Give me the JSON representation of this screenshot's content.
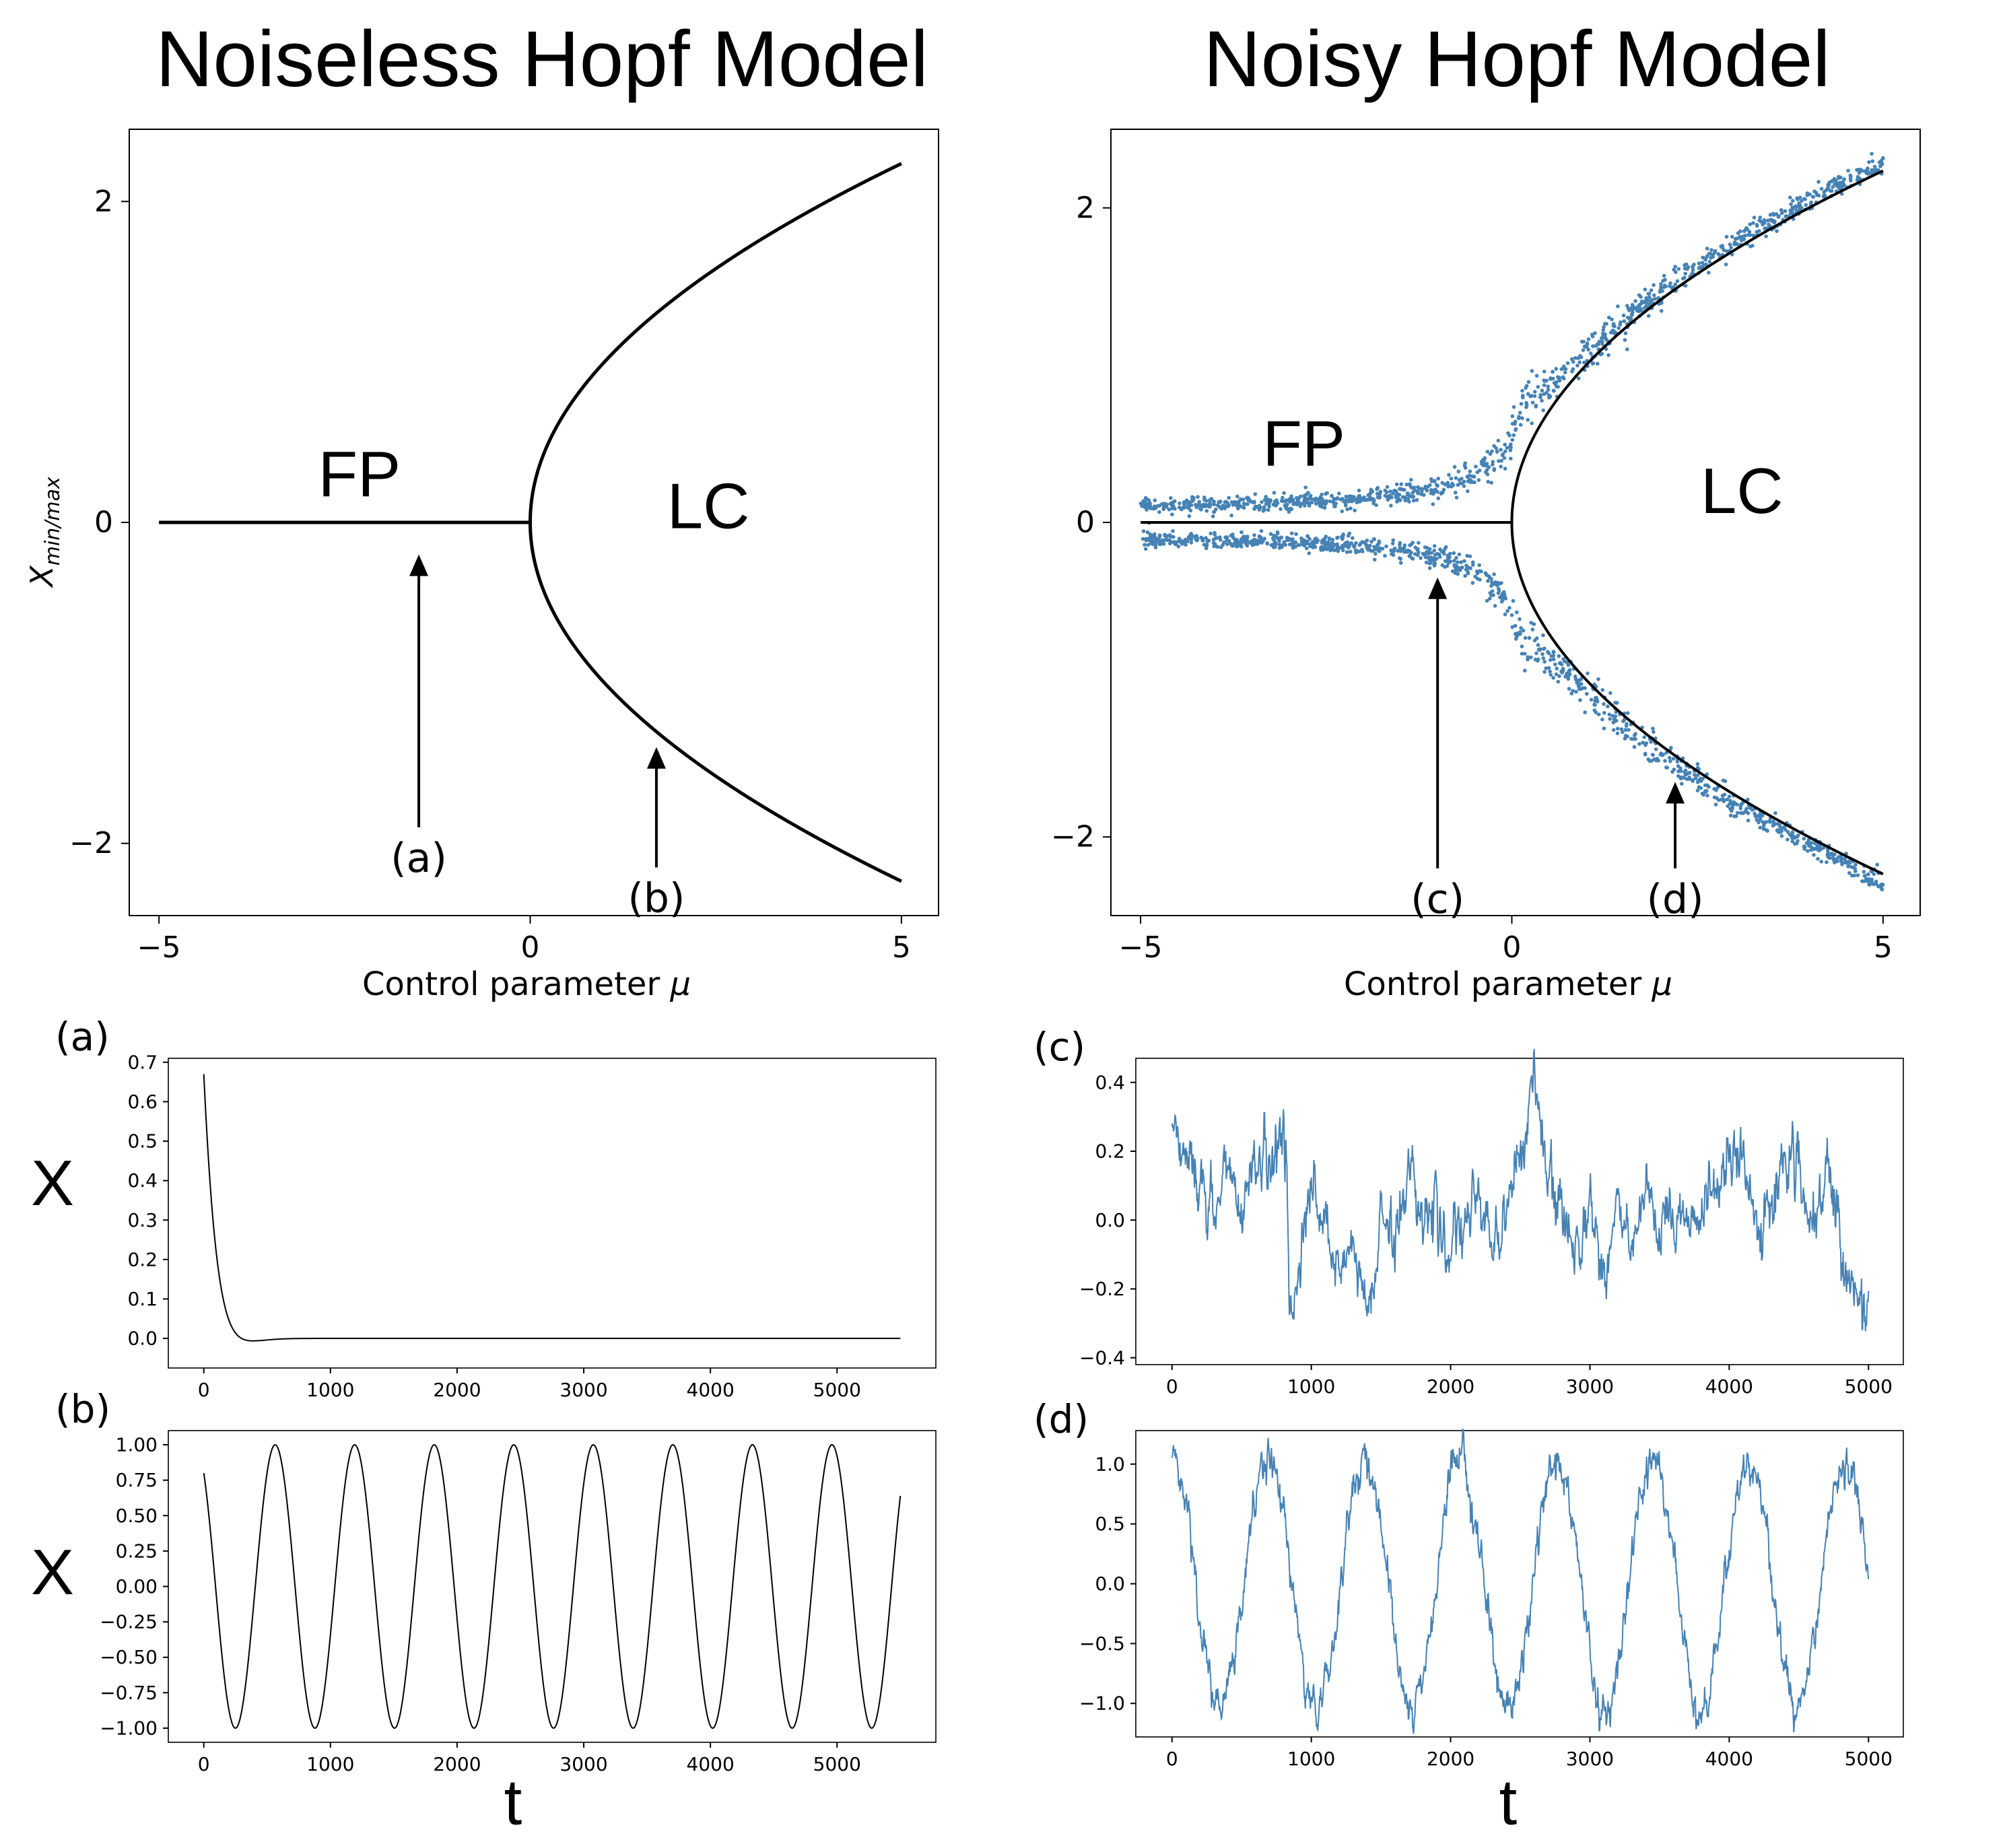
{
  "titles": {
    "left": "Noiseless Hopf Model",
    "right": "Noisy Hopf Model"
  },
  "colors": {
    "line": "#000000",
    "noisy": "#4682b4",
    "frame": "#000000"
  },
  "chart_data": [
    {
      "id": "noiseless-bifurcation",
      "type": "line",
      "xlabel": "Control parameter μ",
      "ylabel": "X_min/max",
      "xlim": [
        -5.4,
        5.5
      ],
      "ylim": [
        -2.45,
        2.45
      ],
      "xticks": [
        -5,
        0,
        5
      ],
      "xtick_labels": [
        "−5",
        "0",
        "5"
      ],
      "yticks": [
        -2,
        0,
        2
      ],
      "ytick_labels": [
        "−2",
        "0",
        "2"
      ],
      "region_labels": [
        {
          "text": "FP",
          "x": -2.3,
          "y": 0.3
        },
        {
          "text": "LC",
          "x": 2.4,
          "y": 0.1
        }
      ],
      "arrows": [
        {
          "label": "(a)",
          "x": -1.5,
          "y_from": -1.9,
          "y_to": -0.2
        },
        {
          "label": "(b)",
          "x": 1.7,
          "y_from": -2.15,
          "y_to": -1.4
        }
      ],
      "curves": {
        "fixed_point": {
          "x_from": -5,
          "x_to": 0,
          "y": 0
        },
        "limit_cycle": "±sqrt(μ), μ from 0 to 5"
      }
    },
    {
      "id": "noisy-bifurcation",
      "type": "scatter",
      "xlabel": "Control parameter μ",
      "xlim": [
        -5.4,
        5.5
      ],
      "ylim": [
        -2.5,
        2.5
      ],
      "xticks": [
        -5,
        0,
        5
      ],
      "xtick_labels": [
        "−5",
        "0",
        "5"
      ],
      "yticks": [
        -2,
        0,
        2
      ],
      "ytick_labels": [
        "−2",
        "0",
        "2"
      ],
      "region_labels": [
        {
          "text": "FP",
          "x": -2.8,
          "y": 0.5
        },
        {
          "text": "LC",
          "x": 3.1,
          "y": 0.2
        }
      ],
      "arrows": [
        {
          "label": "(c)",
          "x": -1.0,
          "y_from": -2.2,
          "y_to": -0.35
        },
        {
          "label": "(d)",
          "x": 2.2,
          "y_from": -2.2,
          "y_to": -1.65
        }
      ],
      "series": [
        {
          "name": "",
          "type": "line",
          "values": "±sqrt(μ) for μ ≥ 0, 0 for μ < 0"
        },
        {
          "name": "",
          "type": "scatter",
          "envelope_below_zero": [
            [
              -5,
              0.1
            ],
            [
              -3,
              0.12
            ],
            [
              -2,
              0.15
            ],
            [
              -1,
              0.22
            ],
            [
              -0.5,
              0.3
            ],
            [
              0,
              0.5
            ]
          ],
          "envelope_above_zero": "≈ sqrt(μ)+0.05"
        }
      ]
    },
    {
      "id": "timeseries-a",
      "panel_label": "(a)",
      "type": "line",
      "xlim": [
        -280,
        5780
      ],
      "ylim": [
        -0.075,
        0.71
      ],
      "xticks": [
        0,
        1000,
        2000,
        3000,
        4000,
        5000
      ],
      "yticks": [
        0.0,
        0.1,
        0.2,
        0.3,
        0.4,
        0.5,
        0.6,
        0.7
      ],
      "ytick_labels": [
        "0.0",
        "0.1",
        "0.2",
        "0.3",
        "0.4",
        "0.5",
        "0.6",
        "0.7"
      ],
      "ylabel": "X",
      "x_end": 5500,
      "x": [
        0,
        50,
        100,
        150,
        200,
        250,
        300,
        350,
        400,
        500,
        600,
        1000,
        5500
      ],
      "y": [
        0.67,
        0.35,
        0.12,
        -0.02,
        -0.055,
        -0.045,
        -0.025,
        -0.008,
        0.0,
        0.003,
        0.0,
        0.0,
        0.0
      ]
    },
    {
      "id": "timeseries-b",
      "panel_label": "(b)",
      "type": "line",
      "xlim": [
        -280,
        5780
      ],
      "ylim": [
        -1.1,
        1.1
      ],
      "xticks": [
        0,
        1000,
        2000,
        3000,
        4000,
        5000
      ],
      "yticks": [
        -1.0,
        -0.75,
        -0.5,
        -0.25,
        0.0,
        0.25,
        0.5,
        0.75,
        1.0
      ],
      "ytick_labels": [
        "−1.00",
        "−0.75",
        "−0.50",
        "−0.25",
        "0.00",
        "0.25",
        "0.50",
        "0.75",
        "1.00"
      ],
      "xlabel": "t",
      "ylabel": "X",
      "x_end": 5500,
      "period": 628,
      "amplitude": 1.0,
      "start_value": 0.8
    },
    {
      "id": "timeseries-c",
      "panel_label": "(c)",
      "type": "line",
      "xlim": [
        -260,
        5250
      ],
      "ylim": [
        -0.42,
        0.47
      ],
      "xticks": [
        0,
        1000,
        2000,
        3000,
        4000,
        5000
      ],
      "yticks": [
        -0.4,
        -0.2,
        0.0,
        0.2,
        0.4
      ],
      "ytick_labels": [
        "−0.4",
        "−0.2",
        "0.0",
        "0.2",
        "0.4"
      ],
      "x_end": 5000,
      "anchors_x": [
        0,
        100,
        200,
        300,
        400,
        500,
        600,
        700,
        800,
        850,
        900,
        1000,
        1100,
        1200,
        1300,
        1400,
        1500,
        1600,
        1700,
        1800,
        1900,
        2000,
        2100,
        2200,
        2300,
        2400,
        2500,
        2600,
        2700,
        2800,
        2900,
        3000,
        3100,
        3200,
        3300,
        3400,
        3500,
        3600,
        3700,
        3800,
        3900,
        4000,
        4100,
        4200,
        4300,
        4400,
        4500,
        4600,
        4700,
        4800,
        4900,
        5000
      ],
      "anchors_y": [
        0.3,
        0.2,
        0.1,
        0.0,
        0.15,
        0.05,
        0.2,
        0.15,
        0.3,
        -0.25,
        -0.2,
        0.1,
        -0.05,
        -0.2,
        -0.05,
        -0.3,
        0.0,
        -0.05,
        0.15,
        0.05,
        0.0,
        -0.1,
        -0.05,
        0.1,
        -0.1,
        0.05,
        0.2,
        0.4,
        0.1,
        0.0,
        -0.05,
        0.05,
        -0.15,
        0.05,
        -0.1,
        0.05,
        -0.05,
        0.0,
        0.05,
        0.0,
        0.1,
        0.2,
        0.15,
        -0.05,
        0.05,
        0.2,
        0.15,
        -0.1,
        0.15,
        -0.05,
        -0.2,
        -0.3
      ],
      "noise": 0.035
    },
    {
      "id": "timeseries-d",
      "panel_label": "(d)",
      "type": "line",
      "xlim": [
        -260,
        5250
      ],
      "ylim": [
        -1.28,
        1.28
      ],
      "xticks": [
        0,
        1000,
        2000,
        3000,
        4000,
        5000
      ],
      "yticks": [
        -1.0,
        -0.5,
        0.0,
        0.5,
        1.0
      ],
      "ytick_labels": [
        "−1.0",
        "−0.5",
        "0.0",
        "0.5",
        "1.0"
      ],
      "xlabel": "t",
      "x_end": 5000,
      "period": 690,
      "amplitude": 1.05,
      "start_value": 1.05,
      "noise": 0.06
    }
  ],
  "axis_labels": {
    "x_bifurcation": "Control parameter ",
    "mu": "μ",
    "y_bifurcation_main": "X",
    "y_bifurcation_sub": "min/max",
    "y_timeseries": "X",
    "x_timeseries": "t"
  }
}
